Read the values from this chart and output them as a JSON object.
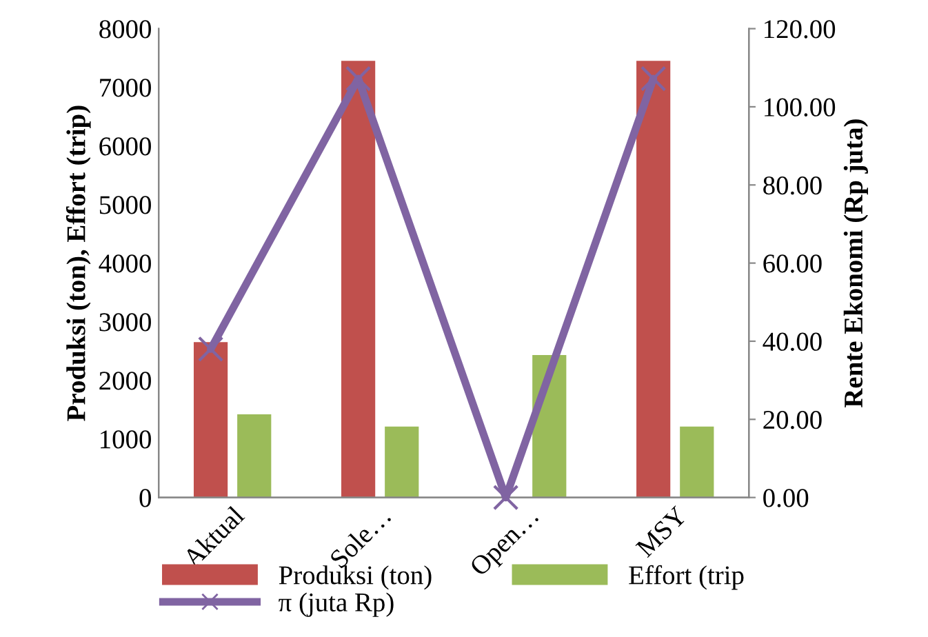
{
  "chart_data": {
    "type": "bar",
    "categories": [
      "Aktual",
      "Sole…",
      "Open…",
      "MSY"
    ],
    "ylabel": "Produksi (ton), Effort (trip)",
    "y2label": "Rente Ekonomi (Rp juta)",
    "series": [
      {
        "name": "Produksi (ton)",
        "color": "#c0504d",
        "values": [
          2650,
          7450,
          null,
          7450
        ]
      },
      {
        "name": "Effort (trip",
        "color": "#9bbb59",
        "values": [
          1420,
          1210,
          2430,
          1210
        ]
      },
      {
        "name": "π (juta Rp)",
        "color": "#8064a2",
        "type": "line",
        "axis": "y2",
        "marker": "cross",
        "values": [
          38.0,
          107.2,
          0.0,
          107.2
        ]
      }
    ],
    "ylim": [
      0,
      8000
    ],
    "yticks": [
      0,
      1000,
      2000,
      3000,
      4000,
      5000,
      6000,
      7000,
      8000
    ],
    "y2lim": [
      0,
      120
    ],
    "y2ticks": [
      {
        "value": 0,
        "label": "0.00"
      },
      {
        "value": 20,
        "label": "20.00"
      },
      {
        "value": 40,
        "label": "40.00"
      },
      {
        "value": 60,
        "label": "60.00"
      },
      {
        "value": 80,
        "label": "80.00"
      },
      {
        "value": 100,
        "label": "100.00"
      },
      {
        "value": 120,
        "label": "120.00"
      }
    ],
    "grid": false,
    "legend": "bottom"
  }
}
